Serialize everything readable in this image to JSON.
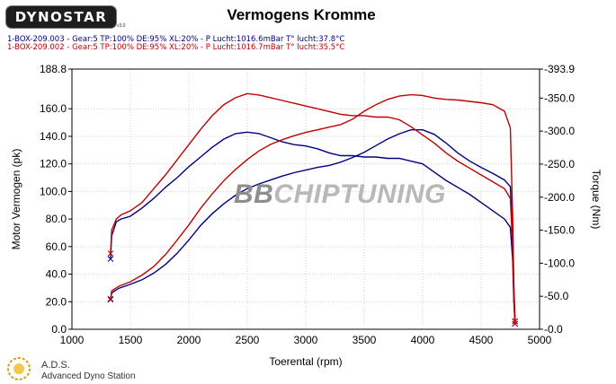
{
  "brand": {
    "logo_text": "DYNOSTAR",
    "version": "v3.0"
  },
  "runs": [
    {
      "label": "1-BOX-209.003 - Gear:5 TP:100% DE:95% XL:20%   - P Lucht:1016.6mBar T° lucht:37.8°C",
      "color": "#000080"
    },
    {
      "label": "1-BOX-209.002 - Gear:5 TP:100% DE:95% XL:20%   - P Lucht:1016.7mBar T° lucht:35.5°C",
      "color": "#c00000"
    }
  ],
  "watermark": {
    "part1": "BB",
    "part2": "CHIPTUNING"
  },
  "footer": {
    "acronym": "A.D.S.",
    "name": "Advanced Dyno Station"
  },
  "chart_data": {
    "type": "line",
    "title": "Vermogens Kromme",
    "xlabel": "Toerental (rpm)",
    "ylabel": "Motor Vermogen (pk)",
    "y2label": "Torque (Nm)",
    "xlim": [
      1000,
      5000
    ],
    "ylim": [
      0,
      188.8
    ],
    "y2lim": [
      0,
      393.9
    ],
    "x_ticks": [
      1000,
      1500,
      2000,
      2500,
      3000,
      3500,
      4000,
      4500,
      5000
    ],
    "y_ticks": [
      "0.0",
      "20.0",
      "40.0",
      "60.0",
      "80.0",
      "100.0",
      "120.0",
      "140.0",
      "160.0",
      "188.8"
    ],
    "y2_ticks": [
      "-0.0",
      "-50.0",
      "-100.0",
      "-150.0",
      "-200.0",
      "-250.0",
      "-300.0",
      "-350.0",
      "-393.9"
    ],
    "grid": true,
    "series": [
      {
        "name": "1-BOX-209.003",
        "measure": "power",
        "axis": "left",
        "color": "#000080",
        "x": [
          1330,
          1340,
          1380,
          1420,
          1500,
          1600,
          1700,
          1800,
          1900,
          2000,
          2100,
          2200,
          2300,
          2400,
          2500,
          2600,
          2700,
          2800,
          2900,
          3000,
          3100,
          3200,
          3300,
          3400,
          3500,
          3600,
          3700,
          3800,
          3900,
          4000,
          4100,
          4200,
          4300,
          4400,
          4500,
          4600,
          4700,
          4750,
          4770,
          4780,
          4790
        ],
        "y": [
          51,
          68,
          78,
          80,
          82,
          88,
          95,
          103,
          110,
          118,
          125,
          132,
          138,
          142,
          143,
          142,
          139,
          136,
          134,
          133,
          131,
          128,
          126,
          126,
          125,
          125,
          124,
          124,
          122,
          120,
          114,
          108,
          103,
          98,
          92,
          86,
          80,
          74,
          50,
          20,
          4
        ]
      },
      {
        "name": "1-BOX-209.003",
        "measure": "torque",
        "axis": "right",
        "color": "#000080",
        "x": [
          1330,
          1340,
          1400,
          1500,
          1600,
          1700,
          1800,
          1900,
          2000,
          2100,
          2200,
          2300,
          2400,
          2500,
          2600,
          2700,
          2800,
          2900,
          3000,
          3100,
          3200,
          3300,
          3400,
          3500,
          3600,
          3700,
          3800,
          3900,
          4000,
          4100,
          4200,
          4300,
          4400,
          4500,
          4600,
          4700,
          4750,
          4770,
          4780,
          4790
        ],
        "y": [
          45,
          55,
          62,
          68,
          75,
          85,
          98,
          115,
          135,
          157,
          175,
          190,
          203,
          213,
          220,
          226,
          232,
          237,
          241,
          245,
          248,
          253,
          260,
          268,
          278,
          288,
          296,
          302,
          302,
          295,
          282,
          267,
          255,
          245,
          236,
          226,
          216,
          140,
          60,
          12
        ]
      },
      {
        "name": "1-BOX-209.002",
        "measure": "power",
        "axis": "left",
        "color": "#c00000",
        "x": [
          1330,
          1340,
          1380,
          1420,
          1500,
          1600,
          1700,
          1800,
          1900,
          2000,
          2100,
          2200,
          2300,
          2400,
          2500,
          2600,
          2700,
          2800,
          2900,
          3000,
          3100,
          3200,
          3300,
          3400,
          3500,
          3600,
          3700,
          3800,
          3900,
          4000,
          4100,
          4200,
          4300,
          4400,
          4500,
          4600,
          4700,
          4750,
          4770,
          4780,
          4790
        ],
        "y": [
          55,
          72,
          80,
          83,
          86,
          92,
          102,
          112,
          123,
          134,
          145,
          155,
          163,
          168,
          171,
          170,
          168,
          166,
          164,
          162,
          160,
          158,
          156,
          155,
          155,
          154,
          154,
          152,
          147,
          141,
          135,
          128,
          122,
          117,
          112,
          107,
          102,
          95,
          60,
          22,
          4
        ]
      },
      {
        "name": "1-BOX-209.002",
        "measure": "torque",
        "axis": "right",
        "color": "#c00000",
        "x": [
          1330,
          1340,
          1400,
          1500,
          1600,
          1700,
          1800,
          1900,
          2000,
          2100,
          2200,
          2300,
          2400,
          2500,
          2600,
          2700,
          2800,
          2900,
          3000,
          3100,
          3200,
          3300,
          3400,
          3500,
          3600,
          3700,
          3800,
          3900,
          4000,
          4100,
          4200,
          4300,
          4400,
          4500,
          4600,
          4700,
          4750,
          4770,
          4780,
          4790
        ],
        "y": [
          46,
          58,
          65,
          72,
          82,
          95,
          113,
          135,
          158,
          183,
          205,
          225,
          242,
          257,
          270,
          280,
          287,
          293,
          298,
          302,
          306,
          310,
          318,
          330,
          340,
          348,
          353,
          355,
          354,
          350,
          348,
          347,
          345,
          343,
          340,
          330,
          305,
          170,
          70,
          12
        ]
      }
    ]
  }
}
